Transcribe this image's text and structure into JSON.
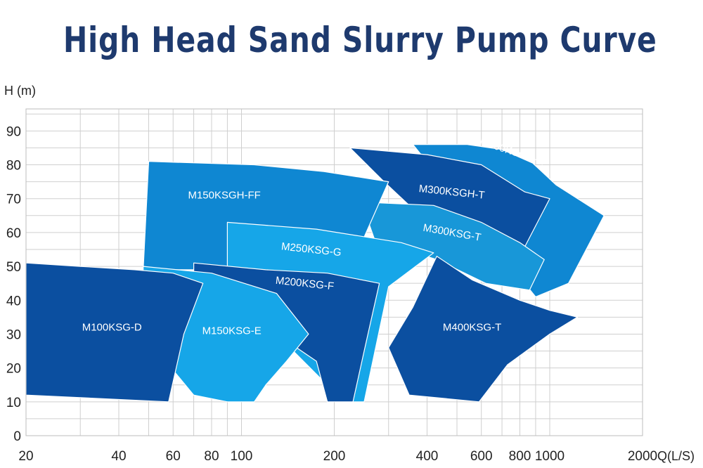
{
  "colors": {
    "title": "#1e3a6e",
    "dark_blue": "#0b4fa0",
    "mid_blue": "#0f87d2",
    "light_blue": "#16a6e8",
    "grid": "#cfcfcf"
  },
  "chart_data": {
    "type": "area",
    "title": "High Head Sand Slurry Pump Curve",
    "ylabel": "H (m)",
    "xlabel": "Q(L/S)",
    "x_scale": "log",
    "xlim": [
      20,
      2000
    ],
    "ylim": [
      0,
      95
    ],
    "x_ticks": [
      "20",
      "40",
      "60",
      "80",
      "100",
      "200",
      "400",
      "600",
      "800",
      "1000",
      "2000"
    ],
    "y_ticks": [
      "0",
      "10",
      "20",
      "30",
      "40",
      "50",
      "60",
      "70",
      "80",
      "90"
    ],
    "grid": true,
    "series": [
      {
        "name": "M400KSGH-H",
        "color": "#0f87d2",
        "points": [
          [
            360,
            86
          ],
          [
            540,
            86
          ],
          [
            700,
            84.5
          ],
          [
            880,
            80.5
          ],
          [
            1050,
            74
          ],
          [
            1500,
            65
          ],
          [
            1150,
            45
          ],
          [
            900,
            41
          ]
        ]
      },
      {
        "name": "M300KSGH-T",
        "color": "#0b4fa0",
        "points": [
          [
            225,
            85
          ],
          [
            400,
            83
          ],
          [
            600,
            80
          ],
          [
            830,
            72
          ],
          [
            1000,
            70
          ],
          [
            800,
            53
          ],
          [
            580,
            53
          ],
          [
            380,
            65
          ],
          [
            290,
            75
          ]
        ]
      },
      {
        "name": "M300KSG-T",
        "color": "#1897d8",
        "points": [
          [
            245,
            69
          ],
          [
            420,
            68
          ],
          [
            600,
            63
          ],
          [
            800,
            57
          ],
          [
            960,
            52
          ],
          [
            860,
            43
          ],
          [
            620,
            45
          ],
          [
            430,
            52
          ],
          [
            270,
            58
          ]
        ]
      },
      {
        "name": "M150KSGH-FF",
        "color": "#0f87d2",
        "points": [
          [
            50,
            81
          ],
          [
            110,
            80
          ],
          [
            185,
            78
          ],
          [
            300,
            75
          ],
          [
            240,
            55
          ],
          [
            140,
            46
          ],
          [
            100,
            48
          ],
          [
            70,
            49
          ],
          [
            48,
            49
          ]
        ]
      },
      {
        "name": "M250KSG-G",
        "color": "#16a6e8",
        "points": [
          [
            90,
            63
          ],
          [
            175,
            61
          ],
          [
            330,
            57
          ],
          [
            420,
            54
          ],
          [
            300,
            44
          ],
          [
            250,
            10
          ],
          [
            215,
            10
          ],
          [
            140,
            27
          ],
          [
            120,
            42
          ],
          [
            90,
            47
          ]
        ]
      },
      {
        "name": "M400KSG-T",
        "color": "#0b4fa0",
        "points": [
          [
            430,
            53
          ],
          [
            560,
            46
          ],
          [
            800,
            40
          ],
          [
            1000,
            37
          ],
          [
            1230,
            35
          ],
          [
            1000,
            30
          ],
          [
            730,
            21
          ],
          [
            590,
            10
          ],
          [
            350,
            12
          ],
          [
            300,
            26
          ],
          [
            360,
            38
          ]
        ]
      },
      {
        "name": "M200KSG-F",
        "color": "#0b4fa0",
        "points": [
          [
            70,
            51
          ],
          [
            120,
            49
          ],
          [
            190,
            48
          ],
          [
            280,
            45
          ],
          [
            250,
            25
          ],
          [
            230,
            10
          ],
          [
            190,
            10
          ],
          [
            175,
            22
          ],
          [
            130,
            30
          ],
          [
            110,
            37
          ],
          [
            100,
            44
          ],
          [
            70,
            47
          ]
        ]
      },
      {
        "name": "M150KSG-E",
        "color": "#16a6e8",
        "points": [
          [
            48,
            50
          ],
          [
            80,
            48
          ],
          [
            130,
            42
          ],
          [
            165,
            30
          ],
          [
            140,
            22
          ],
          [
            120,
            15
          ],
          [
            110,
            10
          ],
          [
            90,
            10
          ],
          [
            70,
            12
          ],
          [
            48,
            30
          ]
        ]
      },
      {
        "name": "M100KSG-D",
        "color": "#0b4fa0",
        "points": [
          [
            20,
            51
          ],
          [
            30,
            50
          ],
          [
            45,
            49
          ],
          [
            60,
            48
          ],
          [
            75,
            45
          ],
          [
            65,
            30
          ],
          [
            58,
            10
          ],
          [
            20,
            12
          ]
        ]
      }
    ],
    "labels": [
      {
        "text": "M100KSG-D",
        "x": 38,
        "y": 31,
        "rotate": 0
      },
      {
        "text": "M150KSG-E",
        "x": 93,
        "y": 30,
        "rotate": 0
      },
      {
        "text": "M200KSG-F",
        "x": 160,
        "y": 44,
        "rotate": 6
      },
      {
        "text": "M250KSG-G",
        "x": 168,
        "y": 54,
        "rotate": 6
      },
      {
        "text": "M150KSGH-FF",
        "x": 88,
        "y": 70,
        "rotate": 0
      },
      {
        "text": "M300KSGH-T",
        "x": 480,
        "y": 71,
        "rotate": 6
      },
      {
        "text": "M300KSG-T",
        "x": 480,
        "y": 59,
        "rotate": 10
      },
      {
        "text": "M400KSGH-H",
        "x": 750,
        "y": 83,
        "rotate": 18
      },
      {
        "text": "M400KSG-T",
        "x": 560,
        "y": 31,
        "rotate": 0
      }
    ]
  }
}
